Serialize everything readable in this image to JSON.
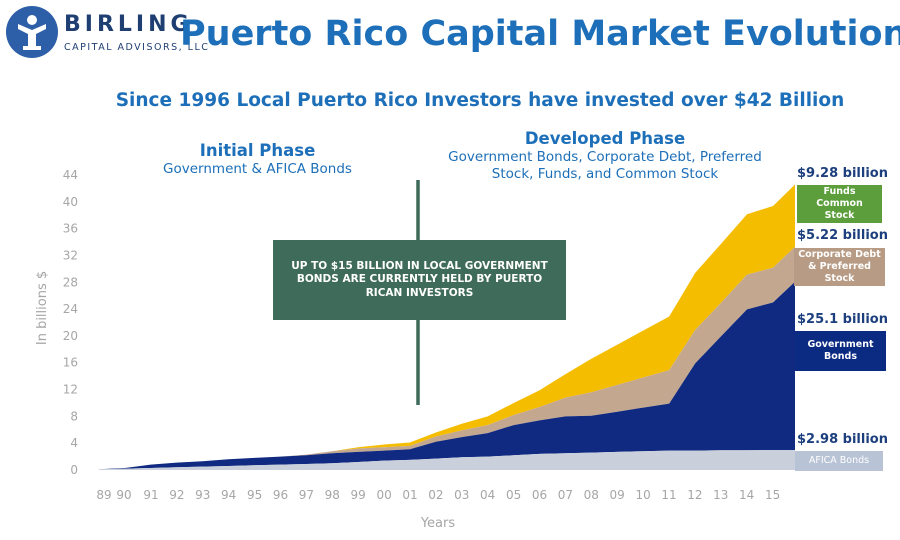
{
  "header": {
    "logo_name": "BIRLING",
    "logo_sub": "CAPITAL ADVISORS, LLC",
    "title": "Puerto Rico Capital Market Evolution",
    "subtitle": "Since 1996 Local Puerto Rico Investors have invested over $42 Billion"
  },
  "phases": {
    "initial_title": "Initial Phase",
    "initial_desc": "Government & AFICA Bonds",
    "developed_title": "Developed Phase",
    "developed_desc": "Government Bonds, Corporate Debt, Preferred Stock, Funds, and Common Stock"
  },
  "callout": "UP TO $15 BILLION IN LOCAL GOVERNMENT BONDS ARE CURRENTLY HELD BY PUERTO RICAN INVESTORS",
  "side_labels": {
    "funds_value": "$9.28 billion",
    "funds_box": "Funds Common Stock",
    "corp_value": "$5.22 billion",
    "corp_box": "Corporate Debt & Preferred Stock",
    "gov_value": "$25.1 billion",
    "gov_box": "Government Bonds",
    "afica_value": "$2.98 billion",
    "afica_box": "AFICA Bonds"
  },
  "colors": {
    "afica": "#c9cfdb",
    "gov": "#0f2a80",
    "corp": "#c4a78f",
    "funds": "#f5bd00",
    "funds_box": "#5c9e3c",
    "corp_box": "#b79b84",
    "gov_box": "#0b2a82",
    "afica_box": "#b9c3d6"
  },
  "chart_data": {
    "type": "area",
    "stacked": true,
    "xlabel": "Years",
    "ylabel": "In billions $",
    "ylim": [
      0,
      44
    ],
    "yticks": [
      0,
      4,
      8,
      12,
      16,
      20,
      24,
      28,
      32,
      36,
      40,
      44
    ],
    "xtick_labels": [
      "89",
      "90",
      "91",
      "92",
      "93",
      "94",
      "95",
      "96",
      "97",
      "98",
      "99",
      "00",
      "01",
      "02",
      "03",
      "04",
      "05",
      "06",
      "07",
      "08",
      "09",
      "10",
      "11",
      "12",
      "13",
      "14",
      "15"
    ],
    "x": [
      1989,
      1990,
      1991,
      1992,
      1993,
      1994,
      1995,
      1996,
      1997,
      1998,
      1999,
      2000,
      2001,
      2002,
      2003,
      2004,
      2005,
      2006,
      2007,
      2008,
      2009,
      2010,
      2011,
      2012,
      2013,
      2014,
      2015,
      2015.85
    ],
    "series": [
      {
        "name": "AFICA Bonds",
        "values": [
          0.1,
          0.2,
          0.3,
          0.4,
          0.5,
          0.6,
          0.7,
          0.8,
          0.9,
          1.0,
          1.2,
          1.4,
          1.5,
          1.7,
          1.9,
          2.0,
          2.2,
          2.4,
          2.5,
          2.6,
          2.7,
          2.8,
          2.9,
          2.9,
          2.95,
          2.95,
          2.98,
          2.98
        ]
      },
      {
        "name": "Government Bonds",
        "values": [
          0.0,
          0.1,
          0.5,
          0.7,
          0.8,
          1.0,
          1.1,
          1.2,
          1.3,
          1.5,
          1.5,
          1.5,
          1.6,
          2.5,
          3.0,
          3.5,
          4.5,
          5.0,
          5.5,
          5.5,
          6.0,
          6.5,
          7.0,
          13.0,
          17.0,
          21.0,
          22.0,
          25.1
        ]
      },
      {
        "name": "Corporate Debt & Preferred Stock",
        "values": [
          0,
          0,
          0,
          0,
          0,
          0,
          0,
          0,
          0.1,
          0.3,
          0.5,
          0.5,
          0.5,
          0.8,
          1.0,
          1.2,
          1.5,
          2.0,
          2.8,
          3.5,
          4.0,
          4.5,
          5.0,
          5.0,
          5.0,
          5.2,
          5.2,
          5.22
        ]
      },
      {
        "name": "Funds & Common Stock",
        "values": [
          0,
          0,
          0,
          0,
          0,
          0,
          0,
          0,
          0,
          0,
          0.2,
          0.4,
          0.5,
          0.6,
          1.0,
          1.3,
          1.8,
          2.5,
          3.5,
          5.0,
          6.0,
          7.0,
          8.0,
          8.5,
          8.8,
          9.0,
          9.2,
          9.28
        ]
      }
    ]
  }
}
